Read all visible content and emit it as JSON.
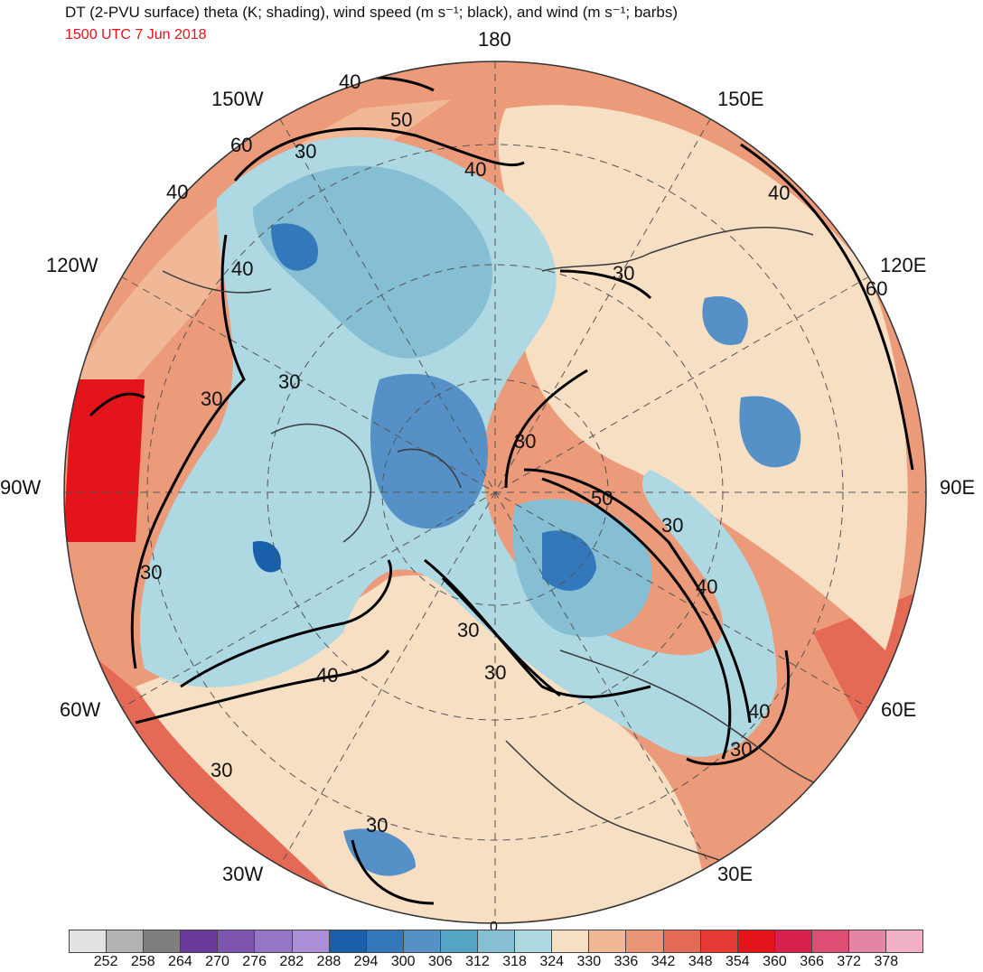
{
  "title": "DT (2-PVU surface) theta (K; shading), wind speed (m s⁻¹; black), and wind (m s⁻¹; barbs)",
  "valid_time": "1500 UTC 7 Jun 2018",
  "longitude_labels": [
    "180",
    "150E",
    "120E",
    "90E",
    "60E",
    "30E",
    "0",
    "30W",
    "60W",
    "90W",
    "120W",
    "150W"
  ],
  "contour_labels": [
    "30",
    "40",
    "50",
    "60"
  ],
  "colorbar": {
    "ticks": [
      "252",
      "258",
      "264",
      "270",
      "276",
      "282",
      "288",
      "294",
      "300",
      "306",
      "312",
      "318",
      "324",
      "330",
      "336",
      "342",
      "348",
      "354",
      "360",
      "366",
      "372",
      "378"
    ],
    "colors": [
      "#e2e2e2",
      "#b2b2b2",
      "#7e7e7e",
      "#6a3a9b",
      "#7e55ae",
      "#9575c4",
      "#ab8fd6",
      "#1a5fa9",
      "#3378bb",
      "#5590c7",
      "#56a4c4",
      "#86bfd4",
      "#aed8e2",
      "#f7dfc4",
      "#f1b897",
      "#eb9577",
      "#e56a55",
      "#e53933",
      "#e4141b",
      "#d5214c",
      "#de4d74",
      "#e584a4",
      "#f0b0c8"
    ]
  },
  "colors": {
    "title": "#111111",
    "valid_time": "#e8101b",
    "contour": "#000000",
    "coastlines": "#3a3a3a"
  },
  "projection": "north-polar-stereographic"
}
